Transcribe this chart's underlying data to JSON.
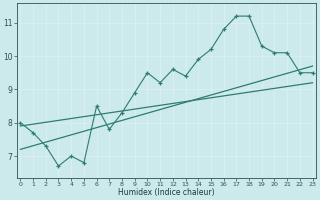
{
  "xlabel": "Humidex (Indice chaleur)",
  "bg_color": "#cce9ec",
  "grid_color": "#b8d8dc",
  "line_color": "#2e7d6e",
  "scatter_x": [
    0,
    1,
    2,
    3,
    4,
    5,
    6,
    7,
    8,
    9,
    10,
    11,
    12,
    13,
    14,
    15,
    16,
    17,
    18,
    19,
    20,
    21,
    22,
    23
  ],
  "scatter_y": [
    8.0,
    7.7,
    7.3,
    6.7,
    7.0,
    6.8,
    8.5,
    7.8,
    8.3,
    8.9,
    9.5,
    9.2,
    9.6,
    9.4,
    9.9,
    10.2,
    10.8,
    11.2,
    11.2,
    10.3,
    10.1,
    10.1,
    9.5,
    9.5
  ],
  "line1_x": [
    0,
    23
  ],
  "line1_y": [
    7.9,
    9.2
  ],
  "line2_x": [
    0,
    23
  ],
  "line2_y": [
    7.2,
    9.7
  ],
  "xlim": [
    -0.3,
    23.3
  ],
  "ylim": [
    6.35,
    11.6
  ],
  "yticks": [
    7,
    8,
    9,
    10,
    11
  ],
  "xticks": [
    0,
    1,
    2,
    3,
    4,
    5,
    6,
    7,
    8,
    9,
    10,
    11,
    12,
    13,
    14,
    15,
    16,
    17,
    18,
    19,
    20,
    21,
    22,
    23
  ]
}
